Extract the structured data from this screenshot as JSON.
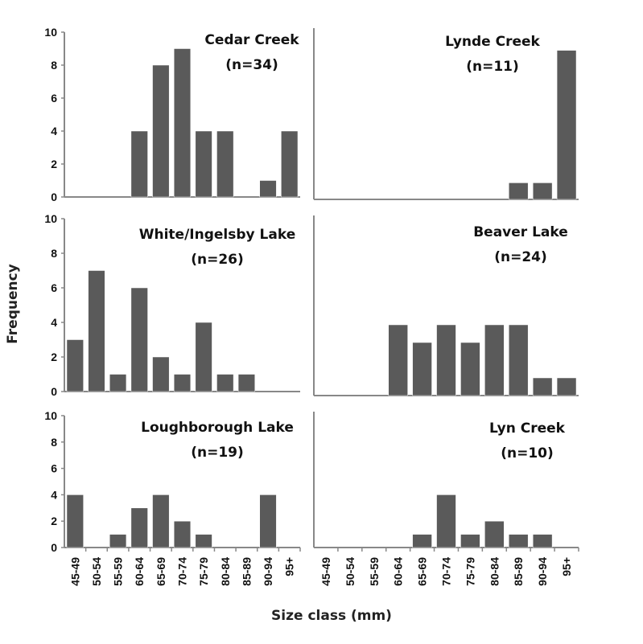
{
  "chart_data": [
    {
      "type": "bar",
      "title": "Cedar Creek",
      "subtitle": "(n=34)",
      "categories": [
        "45-49",
        "50-54",
        "55-59",
        "60-64",
        "65-69",
        "70-74",
        "75-79",
        "80-84",
        "85-89",
        "90-94",
        "95+"
      ],
      "values": [
        0,
        0,
        0,
        4,
        8,
        9,
        4,
        4,
        0,
        1,
        4
      ],
      "ylim": [
        0,
        10
      ],
      "yticks": [
        0,
        2,
        4,
        6,
        8,
        10
      ]
    },
    {
      "type": "bar",
      "title": "Lynde Creek",
      "subtitle": "(n=11)",
      "categories": [
        "45-49",
        "50-54",
        "55-59",
        "60-64",
        "65-69",
        "70-74",
        "75-79",
        "80-84",
        "85-89",
        "90-94",
        "95+"
      ],
      "values": [
        0,
        0,
        0,
        0,
        0,
        0,
        0,
        0,
        1,
        1,
        9
      ],
      "ylim": [
        0,
        10
      ]
    },
    {
      "type": "bar",
      "title": "White/Ingelsby Lake",
      "subtitle": "(n=26)",
      "categories": [
        "45-49",
        "50-54",
        "55-59",
        "60-64",
        "65-69",
        "70-74",
        "75-79",
        "80-84",
        "85-89",
        "90-94",
        "95+"
      ],
      "values": [
        3,
        7,
        1,
        6,
        2,
        1,
        4,
        1,
        1,
        0,
        0
      ],
      "ylim": [
        0,
        10
      ],
      "yticks": [
        0,
        2,
        4,
        6,
        8,
        10
      ]
    },
    {
      "type": "bar",
      "title": "Beaver Lake",
      "subtitle": "(n=24)",
      "categories": [
        "45-49",
        "50-54",
        "55-59",
        "60-64",
        "65-69",
        "70-74",
        "75-79",
        "80-84",
        "85-89",
        "90-94",
        "95+"
      ],
      "values": [
        0,
        0,
        0,
        4,
        3,
        4,
        3,
        4,
        4,
        1,
        1
      ],
      "ylim": [
        0,
        10
      ]
    },
    {
      "type": "bar",
      "title": "Loughborough Lake",
      "subtitle": "(n=19)",
      "categories": [
        "45-49",
        "50-54",
        "55-59",
        "60-64",
        "65-69",
        "70-74",
        "75-79",
        "80-84",
        "85-89",
        "90-94",
        "95+"
      ],
      "values": [
        4,
        0,
        1,
        3,
        4,
        2,
        1,
        0,
        0,
        4,
        0
      ],
      "ylim": [
        0,
        10
      ],
      "yticks": [
        0,
        2,
        4,
        6,
        8,
        10
      ],
      "show_xticks": true
    },
    {
      "type": "bar",
      "title": "Lyn Creek",
      "subtitle": "(n=10)",
      "categories": [
        "45-49",
        "50-54",
        "55-59",
        "60-64",
        "65-69",
        "70-74",
        "75-79",
        "80-84",
        "85-89",
        "90-94",
        "95+"
      ],
      "values": [
        0,
        0,
        0,
        0,
        1,
        4,
        1,
        2,
        1,
        1,
        0
      ],
      "ylim": [
        0,
        10
      ],
      "show_xticks": true
    }
  ],
  "ylabel": "Frequency",
  "xlabel": "Size class (mm)",
  "colors": {
    "bar": "#5a5a5a",
    "axis": "#888888"
  }
}
